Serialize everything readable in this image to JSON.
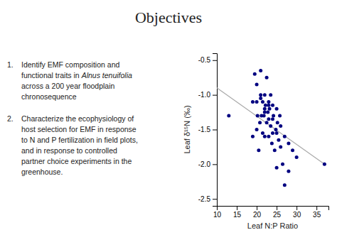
{
  "chart_data": {
    "type": "scatter",
    "title": "Objectives",
    "annotations": [
      {
        "label": "1.",
        "lines": [
          [
            {
              "text": "Identify EMF composition and"
            }
          ],
          [
            {
              "text": "functional traits in "
            },
            {
              "text": "Alnus tenuifolia",
              "style": "italic"
            }
          ],
          [
            {
              "text": "across a 200 year floodplain"
            }
          ],
          [
            {
              "text": "chronosequence"
            }
          ]
        ]
      },
      {
        "label": "2.",
        "lines": [
          [
            {
              "text": "Characterize the ecophysiology of"
            }
          ],
          [
            {
              "text": "host selection for EMF in response"
            }
          ],
          [
            {
              "text": "to N and P fertilization in field plots,"
            }
          ],
          [
            {
              "text": "and in response to controlled"
            }
          ],
          [
            {
              "text": "partner choice experiments in the"
            }
          ],
          [
            {
              "text": "greenhouse."
            }
          ]
        ]
      }
    ],
    "series": [
      {
        "type": "scatter",
        "color": "#000080",
        "x": [
          13,
          19,
          19.5,
          20,
          20,
          20.2,
          20.5,
          20.8,
          21,
          21,
          21.2,
          21.5,
          21.5,
          21.8,
          22,
          22,
          22,
          22.2,
          22.5,
          22.5,
          22.8,
          23,
          23,
          23,
          23.2,
          23.5,
          23.5,
          23.8,
          24,
          24,
          24.2,
          24.5,
          24.8,
          25,
          25,
          25.2,
          25.5,
          25.8,
          26,
          26.5,
          27,
          28,
          37,
          19,
          20,
          21,
          22,
          23,
          24,
          25,
          26,
          27,
          28,
          29,
          30
        ],
        "values": [
          -1.3,
          -1.6,
          -0.7,
          -1.1,
          -1.5,
          -1.3,
          -1.8,
          -1.4,
          -0.65,
          -1.0,
          -1.3,
          -1.1,
          -1.55,
          -1.3,
          -1.0,
          -1.2,
          -1.6,
          -1.15,
          -1.4,
          -0.75,
          -1.25,
          -1.1,
          -1.35,
          -1.6,
          -1.2,
          -1.0,
          -1.45,
          -1.7,
          -1.15,
          -1.55,
          -1.3,
          -1.8,
          -1.5,
          -1.2,
          -2.05,
          -1.4,
          -1.65,
          -1.3,
          -1.75,
          -2.0,
          -2.3,
          -2.1,
          -2.0,
          -1.1,
          -0.85,
          -1.05,
          -1.25,
          -1.15,
          -1.35,
          -1.55,
          -1.45,
          -1.6,
          -1.7,
          -1.8,
          -1.9
        ]
      },
      {
        "type": "line",
        "color": "#aaaaaa",
        "x": [
          10,
          37
        ],
        "values": [
          -0.9,
          -2.0
        ]
      }
    ],
    "xlabel": "Leaf N:P Ratio",
    "ylabel": "Leaf δ¹⁵N (‰)",
    "xlim": [
      10,
      38
    ],
    "ylim": [
      -2.6,
      -0.4
    ],
    "xticks": [
      10,
      15,
      20,
      25,
      30,
      35
    ],
    "yticks": [
      -0.5,
      {
        "value": -1.0,
        "label": "-1.0"
      },
      -1.5,
      {
        "value": -2.0,
        "label": "-2.0"
      },
      -2.5
    ],
    "grid": false
  }
}
